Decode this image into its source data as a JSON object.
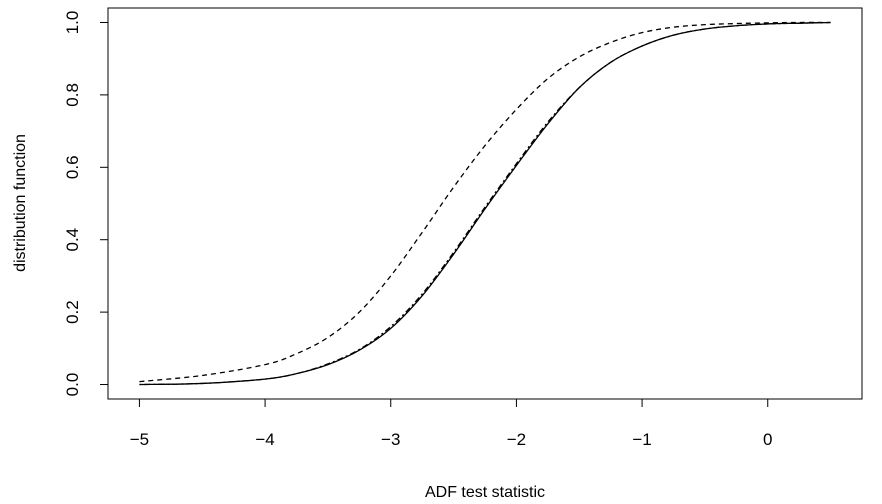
{
  "chart_data": {
    "type": "line",
    "title": "",
    "xlabel": "ADF test statistic",
    "ylabel": "distribution function",
    "xlim": [
      -5.25,
      0.75
    ],
    "ylim": [
      -0.04,
      1.04
    ],
    "x_ticks": [
      -5,
      -4,
      -3,
      -2,
      -1,
      0
    ],
    "y_ticks": [
      0.0,
      0.2,
      0.4,
      0.6,
      0.8,
      1.0
    ],
    "x_tick_labels": [
      "−5",
      "−4",
      "−3",
      "−2",
      "−1",
      "0"
    ],
    "y_tick_labels": [
      "0.0",
      "0.2",
      "0.4",
      "0.6",
      "0.8",
      "1.0"
    ],
    "grid": false,
    "legend": "none",
    "series": [
      {
        "style": "solid",
        "color": "#000000",
        "x": [
          -5.0,
          -4.5,
          -4.0,
          -3.75,
          -3.5,
          -3.25,
          -3.0,
          -2.75,
          -2.5,
          -2.25,
          -2.0,
          -1.75,
          -1.5,
          -1.25,
          -1.0,
          -0.75,
          -0.5,
          -0.25,
          0.0,
          0.25,
          0.5
        ],
        "y": [
          0.0,
          0.003,
          0.015,
          0.03,
          0.055,
          0.095,
          0.155,
          0.245,
          0.36,
          0.485,
          0.605,
          0.72,
          0.82,
          0.89,
          0.935,
          0.965,
          0.982,
          0.991,
          0.996,
          0.998,
          1.0
        ]
      },
      {
        "style": "dotdash",
        "color": "#000000",
        "x": [
          -5.0,
          -4.5,
          -4.0,
          -3.75,
          -3.5,
          -3.25,
          -3.0,
          -2.75,
          -2.5,
          -2.25,
          -2.0,
          -1.75,
          -1.5,
          -1.25,
          -1.0,
          -0.75,
          -0.5,
          -0.25,
          0.0,
          0.25,
          0.5
        ],
        "y": [
          0.0,
          0.003,
          0.015,
          0.03,
          0.057,
          0.097,
          0.16,
          0.25,
          0.365,
          0.49,
          0.61,
          0.725,
          0.82,
          0.89,
          0.935,
          0.965,
          0.982,
          0.991,
          0.996,
          0.998,
          1.0
        ]
      },
      {
        "style": "dashed",
        "color": "#000000",
        "x": [
          -5.0,
          -4.5,
          -4.0,
          -3.75,
          -3.5,
          -3.25,
          -3.0,
          -2.75,
          -2.5,
          -2.25,
          -2.0,
          -1.75,
          -1.5,
          -1.25,
          -1.0,
          -0.75,
          -0.5,
          -0.25,
          0.0,
          0.25,
          0.5
        ],
        "y": [
          0.008,
          0.025,
          0.055,
          0.085,
          0.13,
          0.2,
          0.3,
          0.42,
          0.545,
          0.66,
          0.76,
          0.845,
          0.905,
          0.945,
          0.972,
          0.987,
          0.994,
          0.997,
          0.999,
          1.0,
          1.0
        ]
      }
    ]
  }
}
